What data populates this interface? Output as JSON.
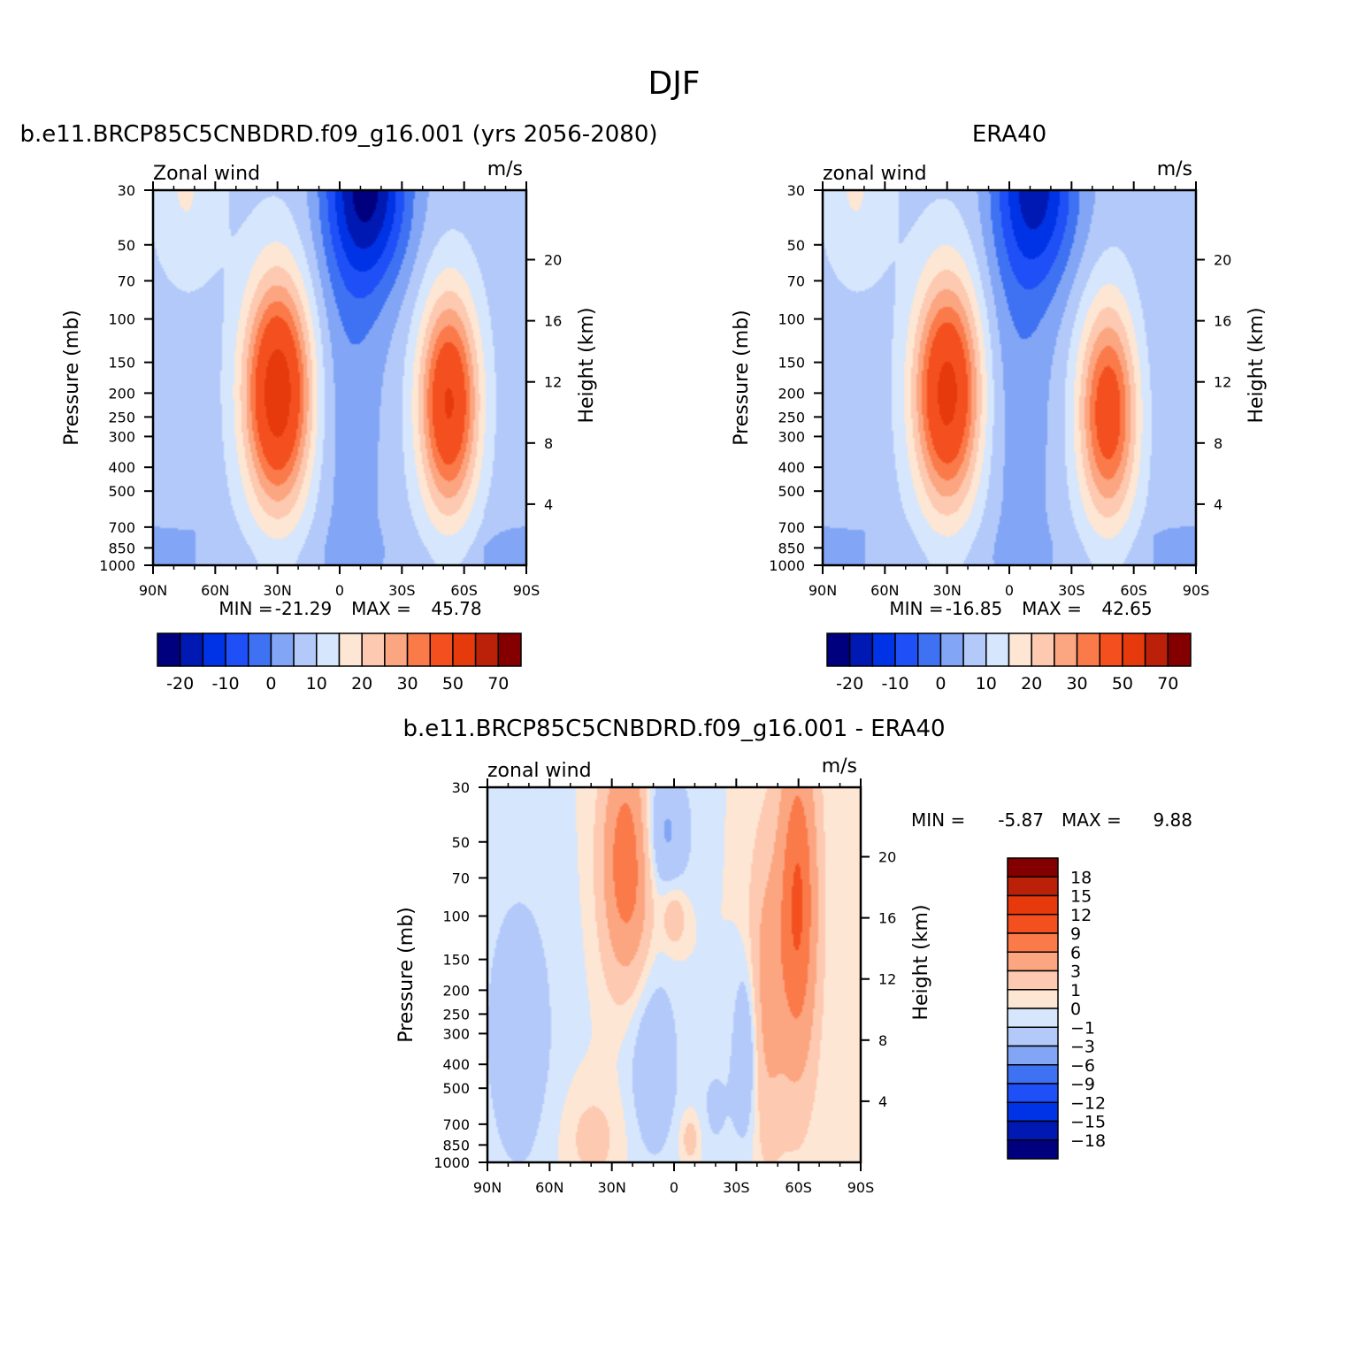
{
  "figure_title": "DJF",
  "chart_data": [
    {
      "type": "heatmap",
      "title": "b.e11.BRCP85C5CNBDRD.f09_g16.001 (yrs 2056-2080)",
      "left_string": "Zonal wind",
      "right_string": "m/s",
      "xlabel": "",
      "ylabel": "Pressure (mb)",
      "ylabel_right": "Height (km)",
      "x_ticklabels": [
        "90N",
        "60N",
        "30N",
        "0",
        "30S",
        "60S",
        "90S"
      ],
      "x_values": [
        90,
        60,
        30,
        0,
        -30,
        -60,
        -90
      ],
      "y_ticklabels": [
        "30",
        "50",
        "70",
        "100",
        "150",
        "200",
        "250",
        "300",
        "400",
        "500",
        "700",
        "850",
        "1000"
      ],
      "y_values": [
        30,
        50,
        70,
        100,
        150,
        200,
        250,
        300,
        400,
        500,
        700,
        850,
        1000
      ],
      "y_scale": "log",
      "y_right_ticklabels": [
        "4",
        "8",
        "12",
        "16",
        "20"
      ],
      "min_label": "MIN =",
      "min_value": "-21.29",
      "max_label": "MAX =",
      "max_value": "45.78",
      "jets": {
        "westerly_nh": {
          "lat": 30,
          "p": 200,
          "max": 45
        },
        "westerly_sh": {
          "lat": -53,
          "p": 220,
          "max": 40
        },
        "easterly": {
          "lat": -15,
          "p": 30,
          "min": -21
        }
      },
      "colorbar_labels": [
        "-20",
        "-10",
        "0",
        "10",
        "20",
        "30",
        "50",
        "70"
      ],
      "colorbar_levels": [
        -25,
        -20,
        -15,
        -10,
        -5,
        0,
        5,
        10,
        15,
        20,
        25,
        30,
        40,
        50,
        60,
        70
      ]
    },
    {
      "type": "heatmap",
      "title": "ERA40",
      "left_string": "zonal wind",
      "right_string": "m/s",
      "xlabel": "",
      "ylabel": "Pressure (mb)",
      "ylabel_right": "Height (km)",
      "x_ticklabels": [
        "90N",
        "60N",
        "30N",
        "0",
        "30S",
        "60S",
        "90S"
      ],
      "x_values": [
        90,
        60,
        30,
        0,
        -30,
        -60,
        -90
      ],
      "y_ticklabels": [
        "30",
        "50",
        "70",
        "100",
        "150",
        "200",
        "250",
        "300",
        "400",
        "500",
        "700",
        "850",
        "1000"
      ],
      "y_values": [
        30,
        50,
        70,
        100,
        150,
        200,
        250,
        300,
        400,
        500,
        700,
        850,
        1000
      ],
      "y_scale": "log",
      "y_right_ticklabels": [
        "4",
        "8",
        "12",
        "16",
        "20"
      ],
      "min_label": "MIN =",
      "min_value": "-16.85",
      "max_label": "MAX =",
      "max_value": "42.65",
      "jets": {
        "westerly_nh": {
          "lat": 30,
          "p": 200,
          "max": 42
        },
        "westerly_sh": {
          "lat": -48,
          "p": 240,
          "max": 35
        },
        "easterly": {
          "lat": -15,
          "p": 30,
          "min": -17
        }
      },
      "colorbar_labels": [
        "-20",
        "-10",
        "0",
        "10",
        "20",
        "30",
        "50",
        "70"
      ],
      "colorbar_levels": [
        -25,
        -20,
        -15,
        -10,
        -5,
        0,
        5,
        10,
        15,
        20,
        25,
        30,
        40,
        50,
        60,
        70
      ]
    },
    {
      "type": "heatmap",
      "title": "b.e11.BRCP85C5CNBDRD.f09_g16.001 - ERA40",
      "left_string": "zonal wind",
      "right_string": "m/s",
      "xlabel": "",
      "ylabel": "Pressure (mb)",
      "ylabel_right": "Height (km)",
      "x_ticklabels": [
        "90N",
        "60N",
        "30N",
        "0",
        "30S",
        "60S",
        "90S"
      ],
      "x_values": [
        90,
        60,
        30,
        0,
        -30,
        -60,
        -90
      ],
      "y_ticklabels": [
        "30",
        "50",
        "70",
        "100",
        "150",
        "200",
        "250",
        "300",
        "400",
        "500",
        "700",
        "850",
        "1000"
      ],
      "y_values": [
        30,
        50,
        70,
        100,
        150,
        200,
        250,
        300,
        400,
        500,
        700,
        850,
        1000
      ],
      "y_scale": "log",
      "y_right_ticklabels": [
        "4",
        "8",
        "12",
        "16",
        "20"
      ],
      "min_label": "MIN =",
      "min_value": "-5.87",
      "max_label": "MAX =",
      "max_value": "9.88",
      "colorbar_labels": [
        "18",
        "15",
        "12",
        "9",
        "6",
        "3",
        "1",
        "0",
        "-1",
        "-3",
        "-6",
        "-9",
        "-12",
        "-15",
        "-18"
      ],
      "colorbar_levels": [
        -18,
        -15,
        -12,
        -9,
        -6,
        -3,
        -1,
        0,
        1,
        3,
        6,
        9,
        12,
        15,
        18
      ]
    }
  ],
  "colors": {
    "palette": [
      "#00007f",
      "#0019b2",
      "#0033e5",
      "#1f4ff7",
      "#3f72f2",
      "#82a6f5",
      "#b3c9fa",
      "#d6e6fc",
      "#fde6d4",
      "#fdc9b0",
      "#fca581",
      "#fb7a4a",
      "#f4501f",
      "#e63a0d",
      "#bb2008",
      "#840000"
    ]
  }
}
